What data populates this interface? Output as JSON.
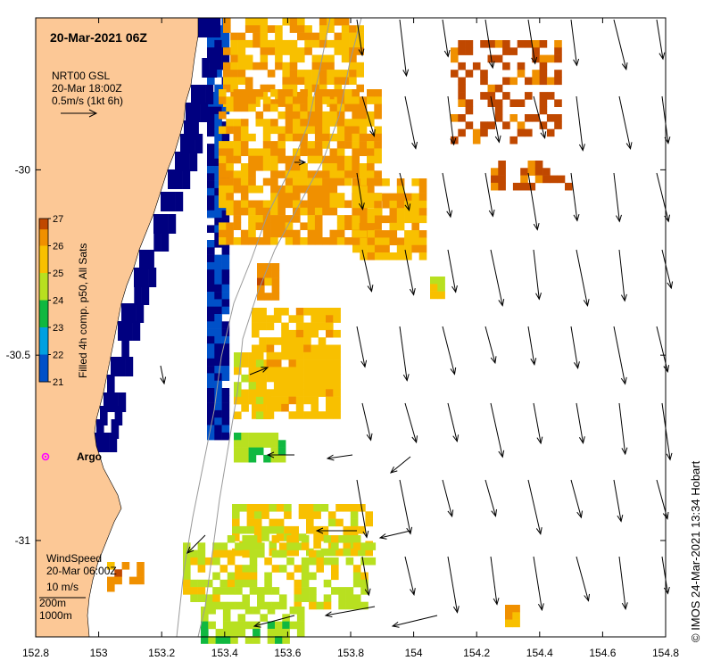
{
  "title": "20-Mar-2021 06Z",
  "legend_current": {
    "source": "NRT00 GSL",
    "time": "20-Mar 18:00Z",
    "scale": "0.5m/s (1kt 6h)"
  },
  "legend_wind": {
    "label": "WindSpeed",
    "time": "20-Mar 06:00Z",
    "scale": "10 m/s"
  },
  "isobath_labels": [
    "200m",
    "1000m"
  ],
  "colorbar": {
    "title": "Filled 4h comp. p50, All Sats",
    "min": 21,
    "max": 27,
    "tick_labels": [
      "27",
      "26",
      "25",
      "24",
      "23",
      "22",
      "21"
    ]
  },
  "axes": {
    "x_ticks": [
      "152.8",
      "153",
      "153.2",
      "153.4",
      "153.6",
      "153.8",
      "154",
      "154.2",
      "154.4",
      "154.6",
      "154.8"
    ],
    "y_ticks": [
      "-30",
      "-30.5",
      "-31"
    ],
    "x_range": [
      152.8,
      154.8
    ],
    "y_range": [
      -29.59,
      -31.26
    ]
  },
  "argo": {
    "label": "Argo",
    "lon": 152.83,
    "lat": -30.81,
    "color": "#ff00ff"
  },
  "credit": "© IMOS 24-Mar-2021 13:34 Hobart",
  "colors": {
    "land": "#fcc896",
    "cold": "#000080",
    "warm": "#c84000"
  }
}
